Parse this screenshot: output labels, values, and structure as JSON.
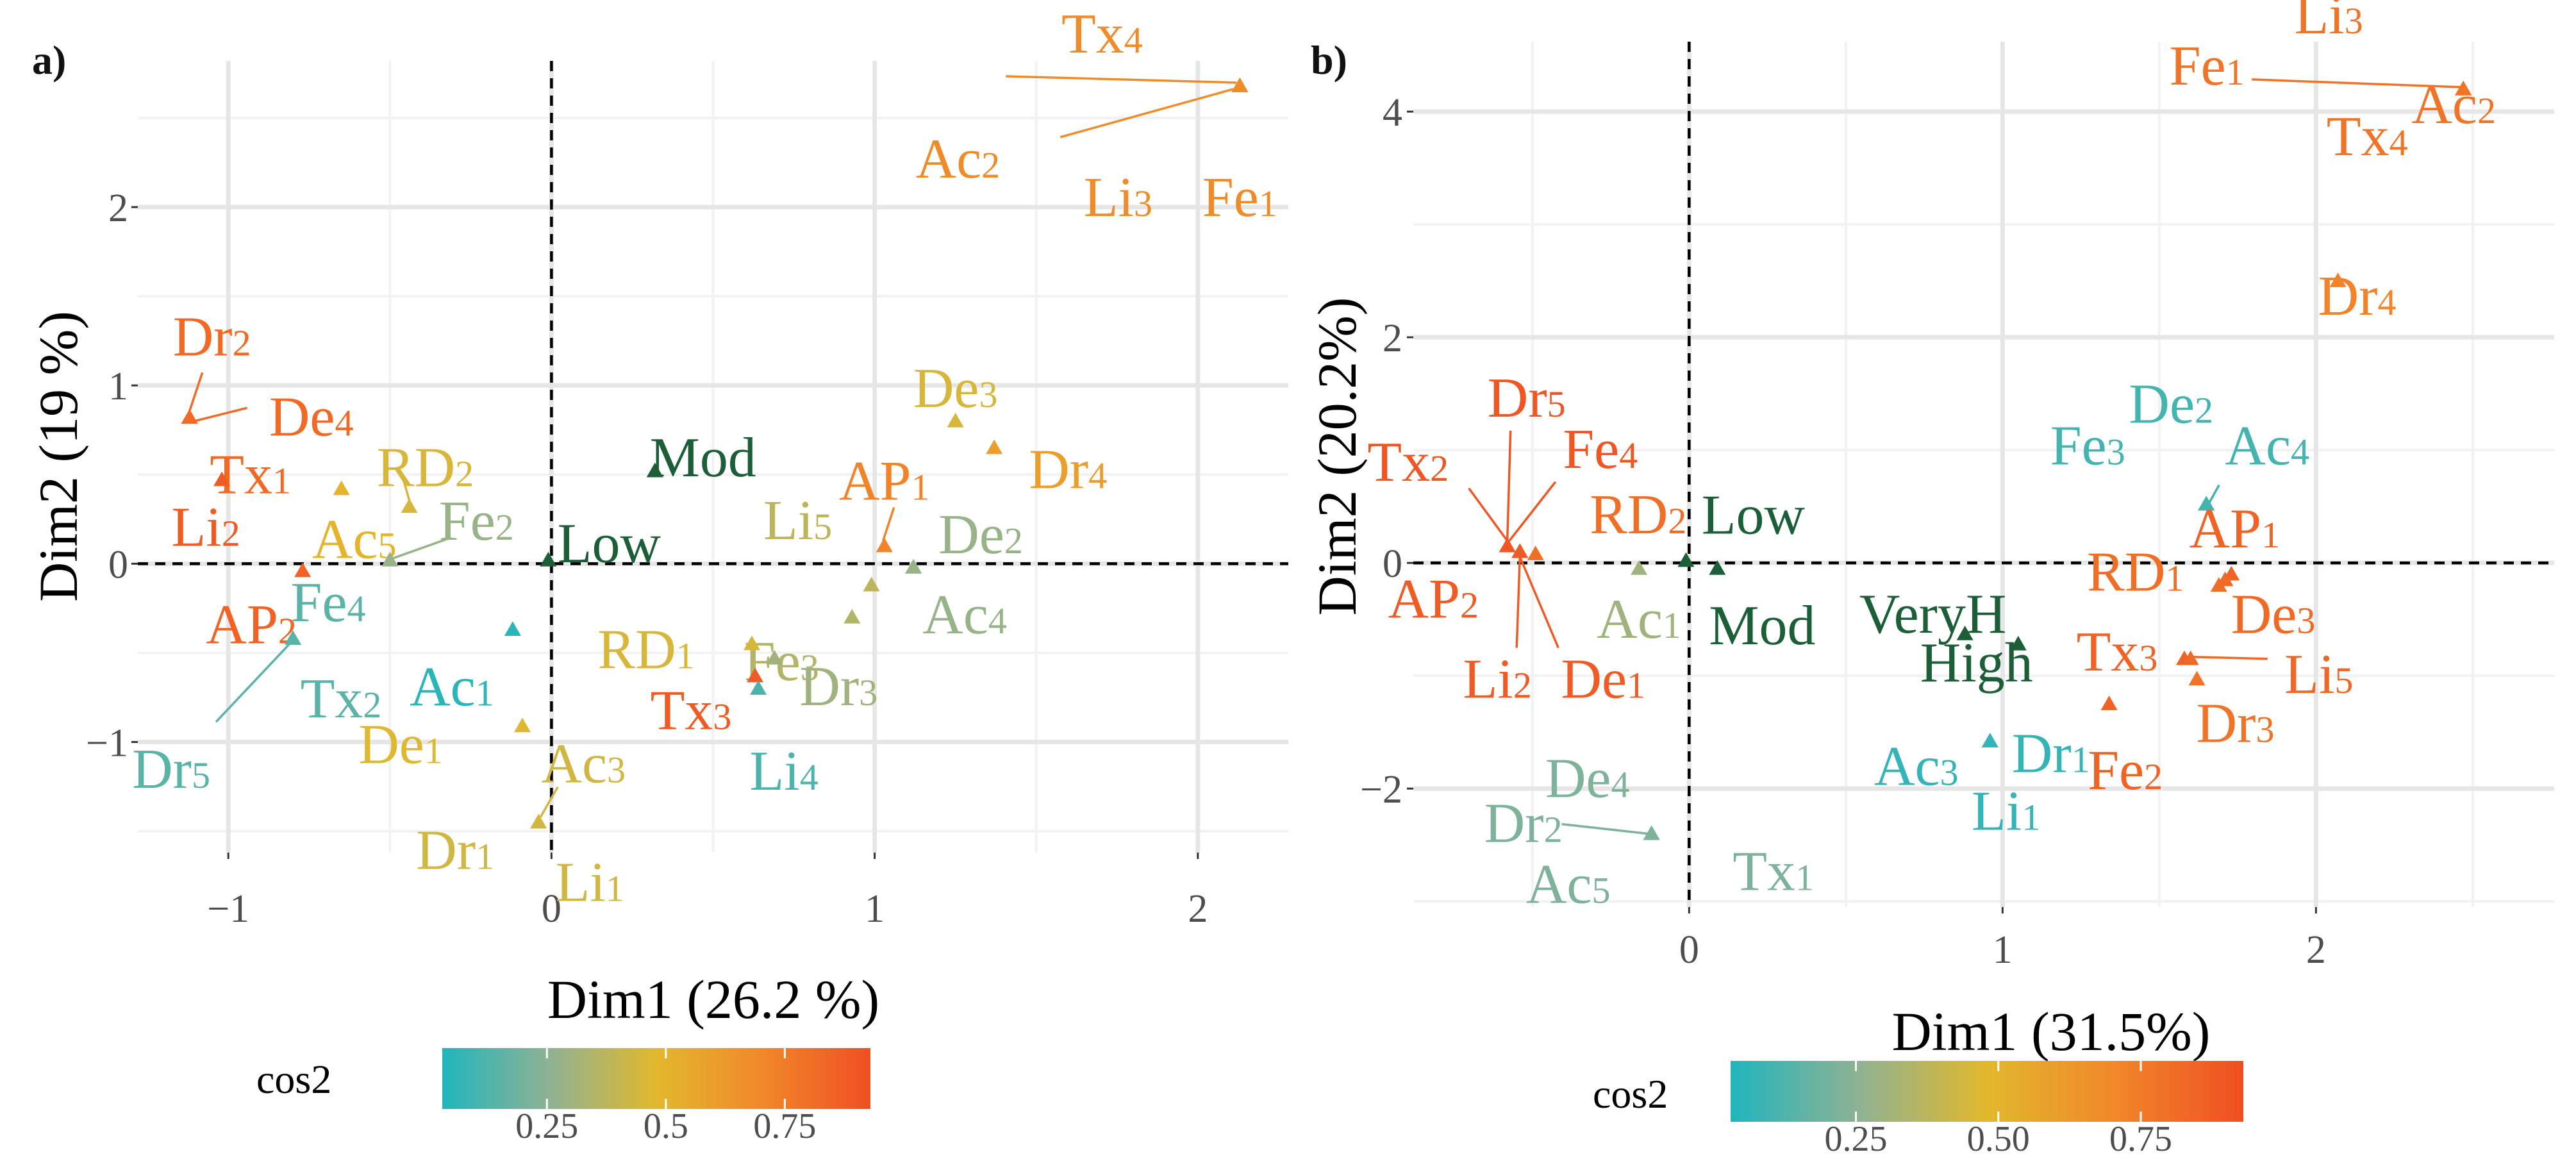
{
  "chart_data": [
    {
      "type": "scatter",
      "panel_label": "a)",
      "title": "",
      "xlabel": "Dim1 (26.2 %)",
      "ylabel": "Dim2 (19 %)",
      "xlim": [
        -1.28,
        2.28
      ],
      "ylim": [
        -1.62,
        2.82
      ],
      "xticks": [
        -1,
        0,
        1,
        2
      ],
      "xtick_labels": [
        "−1",
        "0",
        "1",
        "2"
      ],
      "yticks": [
        -1,
        0,
        1,
        2
      ],
      "ytick_labels": [
        "−1",
        "0",
        "1",
        "2"
      ],
      "legend": {
        "title": "cos2",
        "ticks": [
          0.25,
          0.5,
          0.75
        ],
        "tick_labels": [
          "0.25",
          "0.5",
          "0.75"
        ],
        "range": [
          0.03,
          0.93
        ],
        "placement": "bottom"
      },
      "points": [
        {
          "name": "Tx",
          "sub": "4",
          "x": 2.13,
          "y": 2.68,
          "cos2": 0.68
        },
        {
          "name": "Ac",
          "sub": "2",
          "x": 2.13,
          "y": 2.68,
          "cos2": 0.68
        },
        {
          "name": "Li",
          "sub": "3",
          "x": 2.13,
          "y": 2.68,
          "cos2": 0.68
        },
        {
          "name": "Fe",
          "sub": "1",
          "x": 2.13,
          "y": 2.68,
          "cos2": 0.68
        },
        {
          "name": "Dr",
          "sub": "2",
          "x": -1.12,
          "y": 0.82,
          "cos2": 0.82
        },
        {
          "name": "De",
          "sub": "4",
          "x": -1.12,
          "y": 0.82,
          "cos2": 0.82
        },
        {
          "name": "Tx",
          "sub": "1",
          "x": -1.12,
          "y": 0.82,
          "cos2": 0.82
        },
        {
          "name": "Li",
          "sub": "2",
          "x": -1.02,
          "y": 0.47,
          "cos2": 0.88
        },
        {
          "name": "Ac",
          "sub": "5",
          "x": -0.65,
          "y": 0.42,
          "cos2": 0.5
        },
        {
          "name": "RD",
          "sub": "2",
          "x": -0.44,
          "y": 0.32,
          "cos2": 0.45
        },
        {
          "name": "Fe",
          "sub": "2",
          "x": -0.5,
          "y": 0.02,
          "cos2": 0.28
        },
        {
          "name": "AP",
          "sub": "2",
          "x": -0.77,
          "y": -0.04,
          "cos2": 0.85
        },
        {
          "name": "Fe",
          "sub": "4",
          "x": -0.8,
          "y": -0.42,
          "cos2": 0.15
        },
        {
          "name": "Tx",
          "sub": "2",
          "x": -0.8,
          "y": -0.42,
          "cos2": 0.15
        },
        {
          "name": "Dr",
          "sub": "5",
          "x": -0.8,
          "y": -0.42,
          "cos2": 0.15
        },
        {
          "name": "Ac",
          "sub": "1",
          "x": -0.12,
          "y": -0.37,
          "cos2": 0.05
        },
        {
          "name": "De",
          "sub": "1",
          "x": -0.09,
          "y": -0.91,
          "cos2": 0.47
        },
        {
          "name": "Ac",
          "sub": "3",
          "x": -0.04,
          "y": -1.45,
          "cos2": 0.43
        },
        {
          "name": "Dr",
          "sub": "1",
          "x": -0.04,
          "y": -1.45,
          "cos2": 0.43
        },
        {
          "name": "Li",
          "sub": "1",
          "x": -0.04,
          "y": -1.45,
          "cos2": 0.43
        },
        {
          "name": "De",
          "sub": "3",
          "x": 1.25,
          "y": 0.8,
          "cos2": 0.45
        },
        {
          "name": "Dr",
          "sub": "4",
          "x": 1.37,
          "y": 0.65,
          "cos2": 0.6
        },
        {
          "name": "AP",
          "sub": "1",
          "x": 1.03,
          "y": 0.1,
          "cos2": 0.72
        },
        {
          "name": "Li",
          "sub": "5",
          "x": 0.99,
          "y": -0.12,
          "cos2": 0.38
        },
        {
          "name": "De",
          "sub": "2",
          "x": 1.12,
          "y": -0.02,
          "cos2": 0.28
        },
        {
          "name": "Ac",
          "sub": "4",
          "x": 1.12,
          "y": -0.02,
          "cos2": 0.28
        },
        {
          "name": "Fe",
          "sub": "3",
          "x": 0.93,
          "y": -0.3,
          "cos2": 0.35
        },
        {
          "name": "RD",
          "sub": "1",
          "x": 0.62,
          "y": -0.45,
          "cos2": 0.45
        },
        {
          "name": "Dr",
          "sub": "3",
          "x": 0.69,
          "y": -0.53,
          "cos2": 0.3
        },
        {
          "name": "Tx",
          "sub": "3",
          "x": 0.63,
          "y": -0.63,
          "cos2": 0.88
        },
        {
          "name": "Li",
          "sub": "4",
          "x": 0.64,
          "y": -0.7,
          "cos2": 0.12
        }
      ],
      "supplementary": [
        {
          "name": "Mod",
          "x": 0.32,
          "y": 0.52
        },
        {
          "name": "Low",
          "x": -0.01,
          "y": 0.02
        }
      ],
      "annotation_color": "#1b5e37"
    },
    {
      "type": "scatter",
      "panel_label": "b)",
      "title": "",
      "xlabel": "Dim1 (31.5%)",
      "ylabel": "Dim2 (20.2%)",
      "xlim": [
        -0.88,
        2.76
      ],
      "ylim": [
        -3.05,
        4.62
      ],
      "xticks": [
        0,
        1,
        2
      ],
      "xtick_labels": [
        "0",
        "1",
        "2"
      ],
      "yticks": [
        -2,
        0,
        2,
        4
      ],
      "ytick_labels": [
        "−2",
        "0",
        "2",
        "4"
      ],
      "legend": {
        "title": "cos2",
        "ticks": [
          0.25,
          0.5,
          0.75
        ],
        "tick_labels": [
          "0.25",
          "0.50",
          "0.75"
        ],
        "range": [
          0.03,
          0.93
        ],
        "placement": "bottom"
      },
      "points": [
        {
          "name": "Li",
          "sub": "3",
          "x": 2.47,
          "y": 4.2,
          "cos2": 0.78
        },
        {
          "name": "Fe",
          "sub": "1",
          "x": 2.47,
          "y": 4.2,
          "cos2": 0.78
        },
        {
          "name": "Tx",
          "sub": "4",
          "x": 2.47,
          "y": 4.2,
          "cos2": 0.78
        },
        {
          "name": "Ac",
          "sub": "2",
          "x": 2.47,
          "y": 4.2,
          "cos2": 0.78
        },
        {
          "name": "Dr",
          "sub": "4",
          "x": 2.07,
          "y": 2.5,
          "cos2": 0.72
        },
        {
          "name": "De",
          "sub": "2",
          "x": 1.65,
          "y": 0.52,
          "cos2": 0.1
        },
        {
          "name": "Ac",
          "sub": "4",
          "x": 1.65,
          "y": 0.52,
          "cos2": 0.1
        },
        {
          "name": "Fe",
          "sub": "3",
          "x": 1.65,
          "y": 0.52,
          "cos2": 0.1
        },
        {
          "name": "AP",
          "sub": "1",
          "x": 1.73,
          "y": -0.1,
          "cos2": 0.85
        },
        {
          "name": "RD",
          "sub": "1",
          "x": 1.69,
          "y": -0.2,
          "cos2": 0.8
        },
        {
          "name": "De",
          "sub": "3",
          "x": 1.71,
          "y": -0.15,
          "cos2": 0.82
        },
        {
          "name": "Tx",
          "sub": "3",
          "x": 1.58,
          "y": -0.85,
          "cos2": 0.85
        },
        {
          "name": "Li",
          "sub": "5",
          "x": 1.6,
          "y": -0.85,
          "cos2": 0.83
        },
        {
          "name": "Dr",
          "sub": "3",
          "x": 1.62,
          "y": -1.03,
          "cos2": 0.78
        },
        {
          "name": "Fe",
          "sub": "2",
          "x": 1.34,
          "y": -1.25,
          "cos2": 0.85
        },
        {
          "name": "Ac",
          "sub": "3",
          "x": 0.96,
          "y": -1.58,
          "cos2": 0.07
        },
        {
          "name": "Dr",
          "sub": "1",
          "x": 0.96,
          "y": -1.58,
          "cos2": 0.07
        },
        {
          "name": "Li",
          "sub": "1",
          "x": 0.96,
          "y": -1.58,
          "cos2": 0.07
        },
        {
          "name": "Dr",
          "sub": "5",
          "x": -0.58,
          "y": 0.15,
          "cos2": 0.9
        },
        {
          "name": "Fe",
          "sub": "4",
          "x": -0.58,
          "y": 0.15,
          "cos2": 0.9
        },
        {
          "name": "Tx",
          "sub": "2",
          "x": -0.58,
          "y": 0.15,
          "cos2": 0.9
        },
        {
          "name": "RD",
          "sub": "2",
          "x": -0.49,
          "y": 0.08,
          "cos2": 0.8
        },
        {
          "name": "AP",
          "sub": "2",
          "x": -0.54,
          "y": 0.1,
          "cos2": 0.88
        },
        {
          "name": "Li",
          "sub": "2",
          "x": -0.54,
          "y": 0.1,
          "cos2": 0.88
        },
        {
          "name": "De",
          "sub": "1",
          "x": -0.54,
          "y": 0.1,
          "cos2": 0.88
        },
        {
          "name": "Ac",
          "sub": "1",
          "x": -0.16,
          "y": -0.05,
          "cos2": 0.3
        },
        {
          "name": "De",
          "sub": "4",
          "x": -0.12,
          "y": -2.4,
          "cos2": 0.22
        },
        {
          "name": "Dr",
          "sub": "2",
          "x": -0.12,
          "y": -2.4,
          "cos2": 0.22
        },
        {
          "name": "Ac",
          "sub": "5",
          "x": -0.12,
          "y": -2.4,
          "cos2": 0.22
        },
        {
          "name": "Tx",
          "sub": "1",
          "x": -0.12,
          "y": -2.4,
          "cos2": 0.22
        }
      ],
      "supplementary": [
        {
          "name": "Low",
          "x": -0.01,
          "y": 0.02
        },
        {
          "name": "Mod",
          "x": 0.09,
          "y": -0.05
        },
        {
          "name": "VeryH",
          "x": 0.88,
          "y": -0.63
        },
        {
          "name": "High",
          "x": 1.05,
          "y": -0.72
        }
      ],
      "annotation_color": "#1b5e37"
    }
  ]
}
